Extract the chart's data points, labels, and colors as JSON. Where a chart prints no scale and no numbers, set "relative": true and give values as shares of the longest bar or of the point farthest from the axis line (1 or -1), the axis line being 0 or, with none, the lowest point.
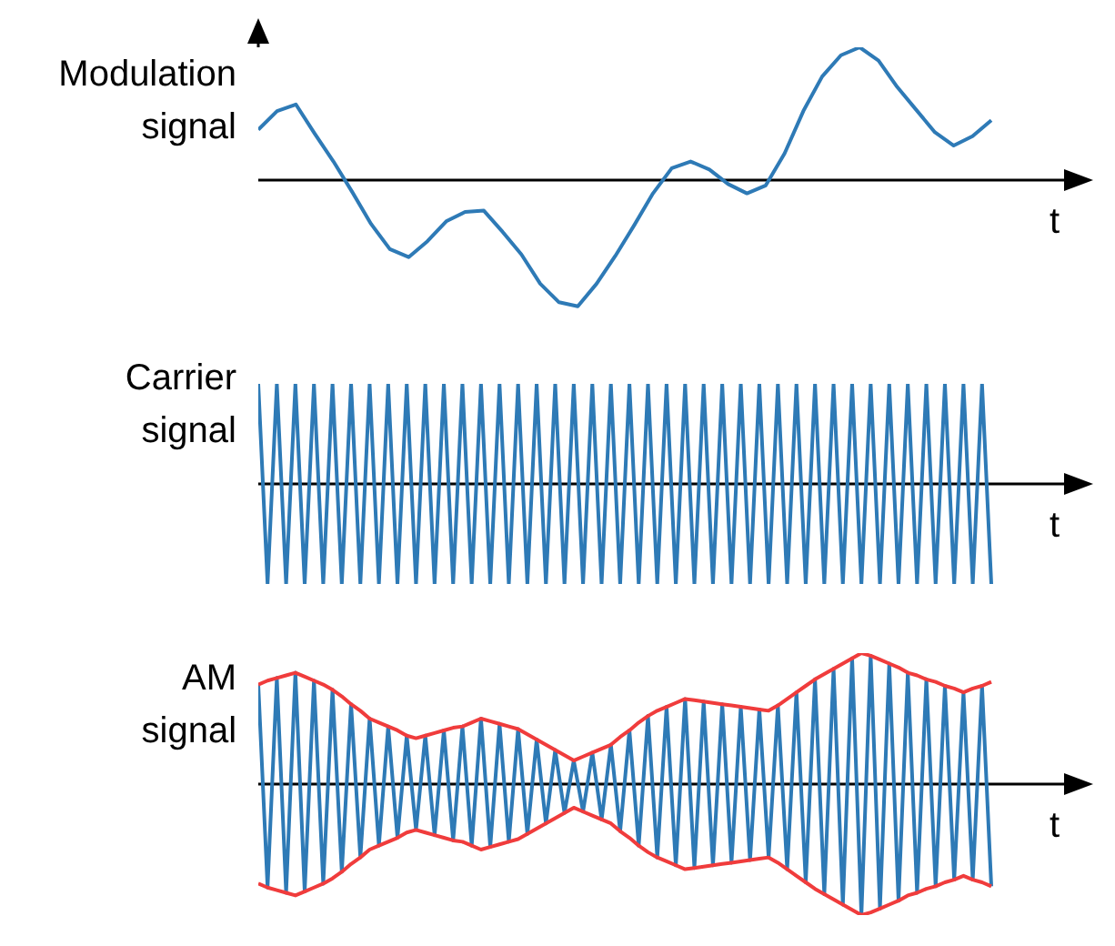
{
  "chart_data": [
    {
      "type": "line",
      "ylabel": "Modulation signal",
      "xlabel": "t",
      "relative": true,
      "tick_labels": false,
      "categories": [
        null,
        null,
        null,
        null,
        null,
        null,
        null,
        null,
        null,
        null,
        null,
        null,
        null,
        null,
        null,
        null,
        null,
        null,
        null,
        null,
        null,
        null,
        null,
        null,
        null,
        null,
        null,
        null,
        null,
        null,
        null,
        null,
        null,
        null,
        null,
        null,
        null,
        null,
        null,
        null
      ],
      "series": [
        {
          "color": "#2e7ab6",
          "values": [
            0.38,
            0.52,
            0.57,
            0.35,
            0.14,
            -0.09,
            -0.33,
            -0.52,
            -0.58,
            -0.46,
            -0.31,
            -0.24,
            -0.23,
            -0.39,
            -0.56,
            -0.78,
            -0.92,
            -0.95,
            -0.78,
            -0.57,
            -0.34,
            -0.1,
            0.09,
            0.14,
            0.08,
            -0.03,
            -0.1,
            -0.04,
            0.2,
            0.52,
            0.78,
            0.94,
            1,
            0.9,
            0.7,
            0.53,
            0.36,
            0.26,
            0.33,
            0.45
          ]
        }
      ]
    },
    {
      "type": "line",
      "ylabel": "Carrier signal",
      "xlabel": "t",
      "relative": true,
      "tick_labels": false,
      "categories": [
        null,
        null,
        null,
        null,
        null,
        null,
        null,
        null,
        null,
        null,
        null,
        null,
        null,
        null,
        null,
        null,
        null,
        null,
        null,
        null,
        null,
        null,
        null,
        null,
        null,
        null,
        null,
        null,
        null,
        null,
        null,
        null,
        null,
        null,
        null,
        null,
        null,
        null,
        null,
        null,
        null,
        null,
        null,
        null,
        null,
        null,
        null,
        null,
        null,
        null,
        null,
        null,
        null,
        null,
        null,
        null,
        null,
        null,
        null,
        null,
        null,
        null,
        null,
        null,
        null,
        null,
        null,
        null,
        null,
        null,
        null,
        null,
        null,
        null,
        null,
        null,
        null,
        null,
        null,
        null
      ],
      "series": [
        {
          "color": "#2e7ab6",
          "values": [
            1,
            -1,
            1,
            -1,
            1,
            -1,
            1,
            -1,
            1,
            -1,
            1,
            -1,
            1,
            -1,
            1,
            -1,
            1,
            -1,
            1,
            -1,
            1,
            -1,
            1,
            -1,
            1,
            -1,
            1,
            -1,
            1,
            -1,
            1,
            -1,
            1,
            -1,
            1,
            -1,
            1,
            -1,
            1,
            -1,
            1,
            -1,
            1,
            -1,
            1,
            -1,
            1,
            -1,
            1,
            -1,
            1,
            -1,
            1,
            -1,
            1,
            -1,
            1,
            -1,
            1,
            -1,
            1,
            -1,
            1,
            -1,
            1,
            -1,
            1,
            -1,
            1,
            -1,
            1,
            -1,
            1,
            -1,
            1,
            -1,
            1,
            -1,
            1,
            -1
          ]
        }
      ]
    },
    {
      "type": "line",
      "ylabel": "AM signal",
      "xlabel": "t",
      "relative": true,
      "tick_labels": false,
      "categories": [
        null,
        null,
        null,
        null,
        null,
        null,
        null,
        null,
        null,
        null,
        null,
        null,
        null,
        null,
        null,
        null,
        null,
        null,
        null,
        null,
        null,
        null,
        null,
        null,
        null,
        null,
        null,
        null,
        null,
        null,
        null,
        null,
        null,
        null,
        null,
        null,
        null,
        null,
        null,
        null,
        null,
        null,
        null,
        null,
        null,
        null,
        null,
        null,
        null,
        null,
        null,
        null,
        null,
        null,
        null,
        null,
        null,
        null,
        null,
        null,
        null,
        null,
        null,
        null,
        null,
        null,
        null,
        null,
        null,
        null,
        null,
        null,
        null,
        null,
        null,
        null,
        null,
        null,
        null,
        null
      ],
      "series": [
        {
          "color": "#2e7ab6",
          "values": [
            0.76,
            -0.79,
            0.81,
            -0.83,
            0.85,
            -0.82,
            0.79,
            -0.76,
            0.72,
            -0.67,
            0.61,
            -0.56,
            0.5,
            -0.47,
            0.44,
            -0.41,
            0.37,
            -0.35,
            0.37,
            -0.39,
            0.41,
            -0.43,
            0.44,
            -0.47,
            0.5,
            -0.48,
            0.46,
            -0.44,
            0.42,
            -0.38,
            0.34,
            -0.3,
            0.26,
            -0.22,
            0.18,
            -0.21,
            0.24,
            -0.27,
            0.3,
            -0.36,
            0.41,
            -0.47,
            0.52,
            -0.56,
            0.59,
            -0.62,
            0.65,
            -0.64,
            0.63,
            -0.62,
            0.61,
            -0.6,
            0.59,
            -0.58,
            0.57,
            -0.56,
            0.6,
            -0.65,
            0.7,
            -0.75,
            0.8,
            -0.84,
            0.88,
            -0.92,
            0.96,
            -1,
            0.98,
            -0.95,
            0.92,
            -0.89,
            0.85,
            -0.83,
            0.8,
            -0.78,
            0.75,
            -0.73,
            0.7,
            -0.73,
            0.75,
            -0.78
          ]
        },
        {
          "color": "#f03c3c",
          "values": [
            0.76,
            0.79,
            0.81,
            0.83,
            0.85,
            0.82,
            0.79,
            0.76,
            0.72,
            0.67,
            0.61,
            0.56,
            0.5,
            0.47,
            0.44,
            0.41,
            0.37,
            0.35,
            0.37,
            0.39,
            0.41,
            0.43,
            0.44,
            0.47,
            0.5,
            0.48,
            0.46,
            0.44,
            0.42,
            0.38,
            0.34,
            0.3,
            0.26,
            0.22,
            0.18,
            0.21,
            0.24,
            0.27,
            0.3,
            0.36,
            0.41,
            0.47,
            0.52,
            0.56,
            0.59,
            0.62,
            0.65,
            0.64,
            0.63,
            0.62,
            0.61,
            0.6,
            0.59,
            0.58,
            0.57,
            0.56,
            0.6,
            0.65,
            0.7,
            0.75,
            0.8,
            0.84,
            0.88,
            0.92,
            0.96,
            1,
            0.98,
            0.95,
            0.92,
            0.89,
            0.85,
            0.83,
            0.8,
            0.78,
            0.75,
            0.73,
            0.7,
            0.73,
            0.75,
            0.78
          ]
        },
        {
          "color": "#f03c3c",
          "values": [
            -0.76,
            -0.79,
            -0.81,
            -0.83,
            -0.85,
            -0.82,
            -0.79,
            -0.76,
            -0.72,
            -0.67,
            -0.61,
            -0.56,
            -0.5,
            -0.47,
            -0.44,
            -0.41,
            -0.37,
            -0.35,
            -0.37,
            -0.39,
            -0.41,
            -0.43,
            -0.44,
            -0.47,
            -0.5,
            -0.48,
            -0.46,
            -0.44,
            -0.42,
            -0.38,
            -0.34,
            -0.3,
            -0.26,
            -0.22,
            -0.18,
            -0.21,
            -0.24,
            -0.27,
            -0.3,
            -0.36,
            -0.41,
            -0.47,
            -0.52,
            -0.56,
            -0.59,
            -0.62,
            -0.65,
            -0.64,
            -0.63,
            -0.62,
            -0.61,
            -0.6,
            -0.59,
            -0.58,
            -0.57,
            -0.56,
            -0.6,
            -0.65,
            -0.7,
            -0.75,
            -0.8,
            -0.84,
            -0.88,
            -0.92,
            -0.96,
            -1,
            -0.98,
            -0.95,
            -0.92,
            -0.89,
            -0.85,
            -0.83,
            -0.8,
            -0.78,
            -0.75,
            -0.73,
            -0.7,
            -0.73,
            -0.75,
            -0.78
          ]
        }
      ]
    }
  ]
}
